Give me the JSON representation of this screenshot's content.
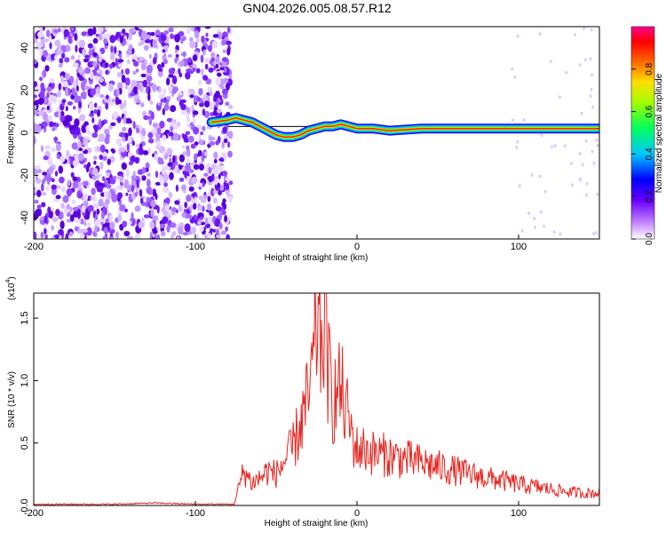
{
  "figure": {
    "title": "GN04.2026.005.08.57.R12"
  },
  "chart_data": [
    {
      "type": "heatmap",
      "title": "GN04.2026.005.08.57.R12",
      "xlabel": "Height of straight line (km)",
      "ylabel": "Frequency (Hz)",
      "xlim": [
        -200,
        150
      ],
      "ylim": [
        -50,
        50
      ],
      "xticks": [
        -200,
        -100,
        0,
        100
      ],
      "yticks": [
        -40,
        -20,
        0,
        20,
        40
      ],
      "colorbar": {
        "label": "Normalized spectral amplitude",
        "range": [
          0,
          1
        ],
        "ticks": [
          "0.0",
          "0.2",
          "0.4",
          "0.6",
          "0.8"
        ],
        "colors": [
          "#ffffff",
          "#a000ff",
          "#0000ff",
          "#00ffff",
          "#00ff00",
          "#ffff00",
          "#ff8000",
          "#ff0000",
          "#ff00ff"
        ]
      },
      "noise_region_x": [
        -200,
        -80
      ],
      "signal_ridge": {
        "x": [
          -90,
          -80,
          -75,
          -70,
          -65,
          -60,
          -55,
          -50,
          -45,
          -40,
          -35,
          -30,
          -25,
          -20,
          -15,
          -10,
          -5,
          0,
          10,
          20,
          40,
          60,
          80,
          100,
          120,
          150
        ],
        "frequency": [
          5,
          6,
          7,
          6,
          5,
          3,
          1,
          -1,
          -2,
          -2,
          -1,
          1,
          2,
          3,
          3,
          4,
          3,
          2,
          2,
          1,
          2,
          2,
          2,
          2,
          2,
          2
        ]
      },
      "reference_line_frequency": 3
    },
    {
      "type": "line",
      "xlabel": "Height of straight line (km)",
      "ylabel": "SNR (10 * v/v)",
      "y_multiplier": "(x10",
      "y_multiplier_exp": "4",
      "xlim": [
        -200,
        150
      ],
      "ylim": [
        0,
        1.7
      ],
      "xticks": [
        -200,
        -100,
        0,
        100
      ],
      "yticks": [
        "0.0",
        "0.5",
        "1.0",
        "1.5"
      ],
      "series": [
        {
          "color": "#e8231e",
          "x": [
            -200,
            -150,
            -125,
            -100,
            -80,
            -76,
            -73,
            -70,
            -65,
            -60,
            -55,
            -50,
            -45,
            -40,
            -35,
            -30,
            -27,
            -25,
            -23,
            -20,
            -17,
            -15,
            -12,
            -10,
            -7,
            -5,
            -3,
            0,
            5,
            10,
            20,
            30,
            40,
            50,
            60,
            70,
            80,
            90,
            100,
            110,
            120,
            130,
            140,
            150
          ],
          "y": [
            0.01,
            0.01,
            0.02,
            0.01,
            0.01,
            0.01,
            0.15,
            0.28,
            0.18,
            0.22,
            0.28,
            0.25,
            0.35,
            0.45,
            0.65,
            0.85,
            1.1,
            1.5,
            1.3,
            1.45,
            1.0,
            0.85,
            0.9,
            0.95,
            0.75,
            0.7,
            0.55,
            0.45,
            0.45,
            0.42,
            0.4,
            0.37,
            0.34,
            0.31,
            0.28,
            0.25,
            0.22,
            0.2,
            0.17,
            0.15,
            0.13,
            0.11,
            0.1,
            0.1
          ]
        }
      ]
    }
  ]
}
